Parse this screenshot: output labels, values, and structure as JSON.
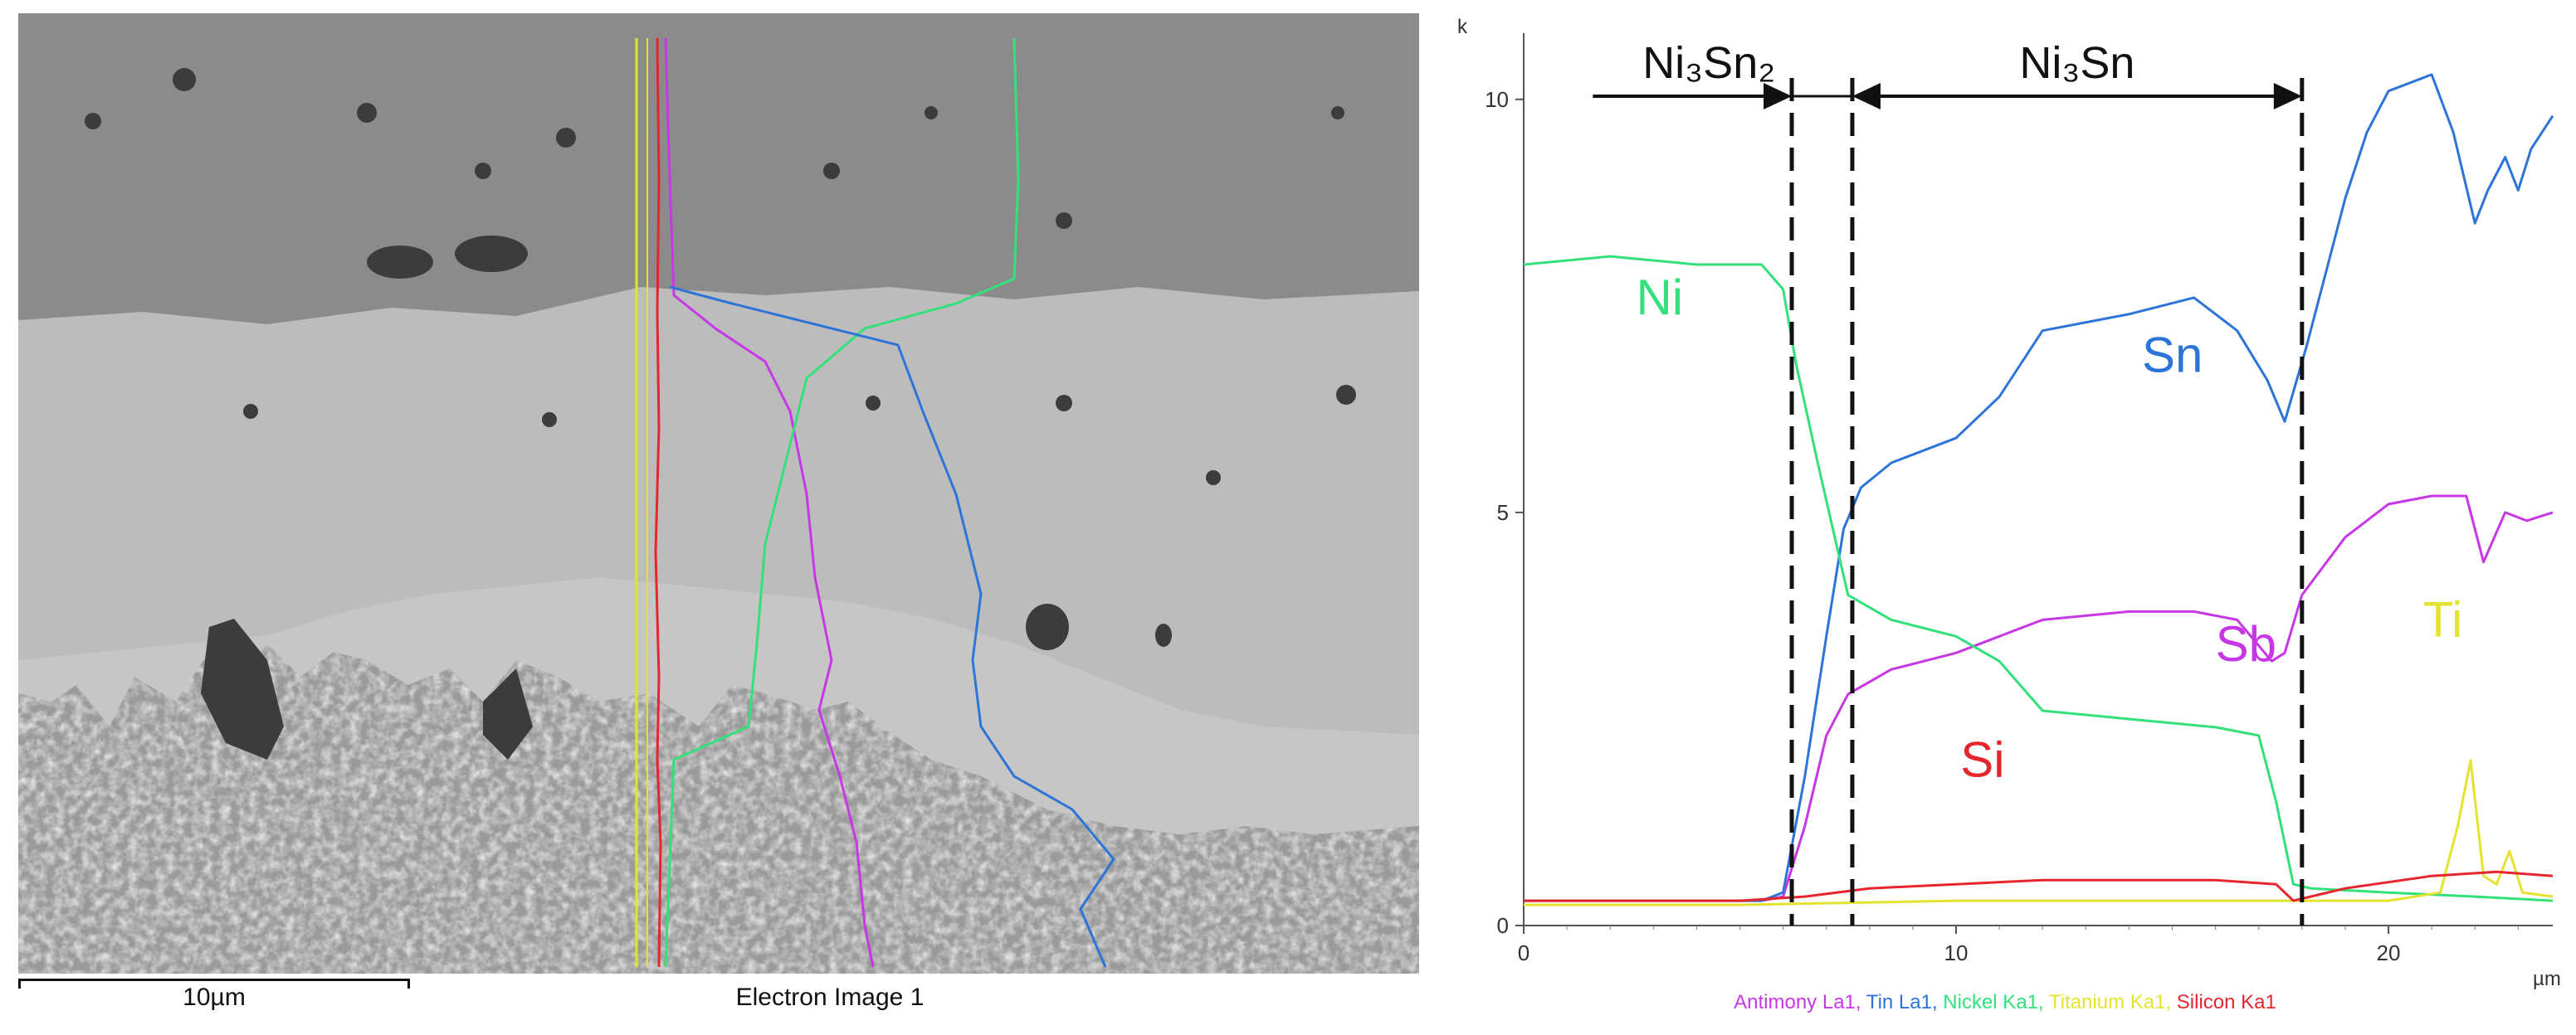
{
  "sem_image": {
    "caption": "Electron Image 1",
    "scale_bar_label": "10µm"
  },
  "chart_data": {
    "type": "line",
    "xlabel": "µm",
    "ylabel": "k",
    "xlim": [
      0,
      23.8
    ],
    "ylim": [
      0,
      10.5
    ],
    "x_ticks": [
      "0",
      "10",
      "20"
    ],
    "y_ticks": [
      "0",
      "5",
      "10"
    ],
    "grid": false,
    "legend_placement": "bottom",
    "series": [
      {
        "name": "Antimony La1",
        "label": "Sb",
        "color": "#c837e6",
        "x": [
          0,
          5.5,
          6.0,
          6.5,
          7.0,
          7.5,
          8.5,
          10,
          11,
          12,
          14,
          15.5,
          16.5,
          17.3,
          17.6,
          18,
          19,
          20,
          21,
          21.8,
          22.2,
          22.7,
          23.2,
          23.8
        ],
        "y": [
          0.3,
          0.3,
          0.35,
          1.2,
          2.3,
          2.8,
          3.1,
          3.3,
          3.5,
          3.7,
          3.8,
          3.8,
          3.7,
          3.2,
          3.3,
          4.0,
          4.7,
          5.1,
          5.2,
          5.2,
          4.4,
          5.0,
          4.9,
          5.0
        ]
      },
      {
        "name": "Tin La1",
        "label": "Sn",
        "color": "#2d74d8",
        "x": [
          0,
          5.5,
          6.0,
          6.5,
          7.0,
          7.4,
          7.8,
          8.5,
          10,
          11,
          12,
          14,
          15.5,
          16.5,
          17.2,
          17.6,
          18.1,
          18.5,
          19,
          19.5,
          20,
          21,
          21.5,
          22,
          22.3,
          22.7,
          23.0,
          23.3,
          23.8
        ],
        "y": [
          0.3,
          0.3,
          0.4,
          1.8,
          3.5,
          4.8,
          5.3,
          5.6,
          5.9,
          6.4,
          7.2,
          7.4,
          7.6,
          7.2,
          6.6,
          6.1,
          7.0,
          7.8,
          8.8,
          9.6,
          10.1,
          10.3,
          9.6,
          8.5,
          8.9,
          9.3,
          8.9,
          9.4,
          9.8
        ]
      },
      {
        "name": "Nickel Ka1",
        "label": "Ni",
        "color": "#33e07a",
        "x": [
          0,
          2,
          4,
          5.5,
          6.0,
          6.3,
          6.8,
          7.5,
          8.5,
          10,
          11,
          12,
          14,
          16,
          17.0,
          17.4,
          17.8,
          18.2,
          20,
          22,
          23.8
        ],
        "y": [
          8.0,
          8.1,
          8.0,
          8.0,
          7.7,
          6.8,
          5.6,
          4.0,
          3.7,
          3.5,
          3.2,
          2.6,
          2.5,
          2.4,
          2.3,
          1.5,
          0.5,
          0.45,
          0.4,
          0.35,
          0.3
        ]
      },
      {
        "name": "Titanium Ka1",
        "label": "Ti",
        "color": "#e3e330",
        "x": [
          0,
          5,
          10,
          15,
          17.5,
          20,
          21.2,
          21.6,
          21.9,
          22.2,
          22.5,
          22.8,
          23.1,
          23.8
        ],
        "y": [
          0.25,
          0.25,
          0.3,
          0.3,
          0.3,
          0.3,
          0.4,
          1.2,
          2.0,
          0.6,
          0.5,
          0.9,
          0.4,
          0.35
        ]
      },
      {
        "name": "Silicon Ka1",
        "label": "Si",
        "color": "#e6262d",
        "x": [
          0,
          5,
          6.5,
          8,
          10,
          12,
          14,
          16,
          17.4,
          17.8,
          19,
          21,
          22.5,
          23.8
        ],
        "y": [
          0.3,
          0.3,
          0.35,
          0.45,
          0.5,
          0.55,
          0.55,
          0.55,
          0.5,
          0.3,
          0.45,
          0.6,
          0.65,
          0.6
        ]
      }
    ],
    "annotations": {
      "region_left": "Ni₃Sn₂",
      "region_right": "Ni₃Sn",
      "boundaries_um": [
        6.2,
        7.6,
        18.0
      ]
    }
  }
}
